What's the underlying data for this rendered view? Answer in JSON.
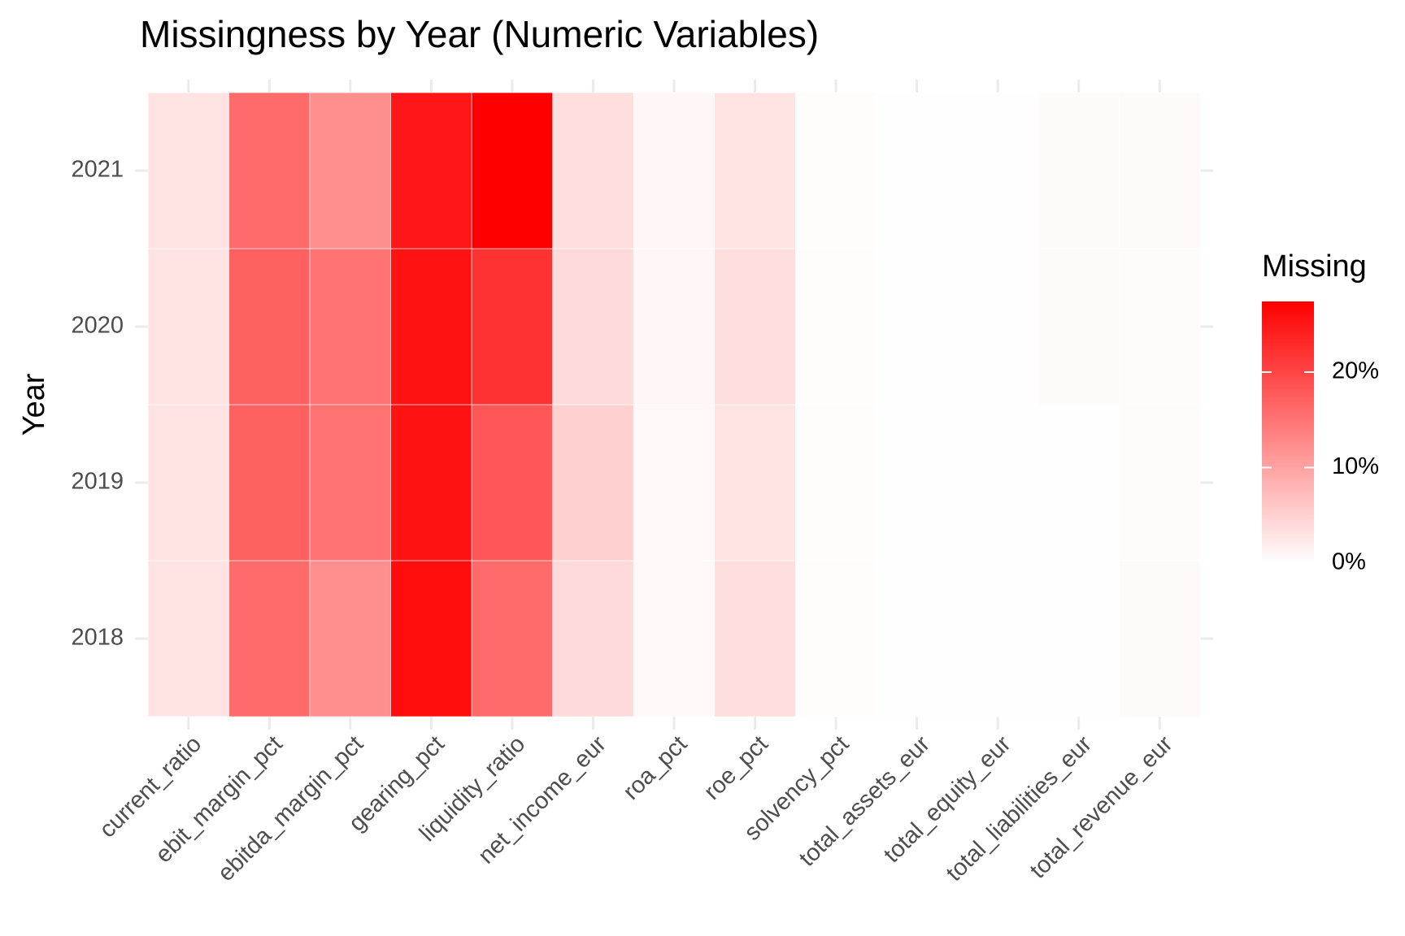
{
  "chart_data": {
    "type": "heatmap",
    "title": "Missingness by Year (Numeric Variables)",
    "y_label": "Year",
    "categories": [
      "current_ratio",
      "ebit_margin_pct",
      "ebitda_margin_pct",
      "gearing_pct",
      "liquidity_ratio",
      "net_income_eur",
      "roa_pct",
      "roe_pct",
      "solvency_pct",
      "total_assets_eur",
      "total_equity_eur",
      "total_liabilities_eur",
      "total_revenue_eur"
    ],
    "years": [
      "2018",
      "2019",
      "2020",
      "2021"
    ],
    "values": [
      [
        3,
        16,
        12,
        26,
        16,
        4,
        0.7,
        3.5,
        0.3,
        0.1,
        0.1,
        0.1,
        0.5
      ],
      [
        3,
        17,
        15,
        25.5,
        18,
        5,
        0.8,
        3,
        0.3,
        0.1,
        0.1,
        0.1,
        0.4
      ],
      [
        3,
        17,
        15,
        25.5,
        22,
        4,
        1,
        3.5,
        0.3,
        0.1,
        0.1,
        0.5,
        0.4
      ],
      [
        3,
        16,
        12,
        25,
        27.4,
        3.5,
        1,
        3,
        0.3,
        0.1,
        0.1,
        0.5,
        0.5
      ]
    ],
    "color_low": "#ffffff",
    "color_high": "#ff0000",
    "legend_title": "Missing",
    "limits": [
      0,
      27.4
    ],
    "legend_ticks": [
      {
        "value": 0,
        "label": "0%"
      },
      {
        "value": 10,
        "label": "10%"
      },
      {
        "value": 20,
        "label": "20%"
      }
    ]
  }
}
